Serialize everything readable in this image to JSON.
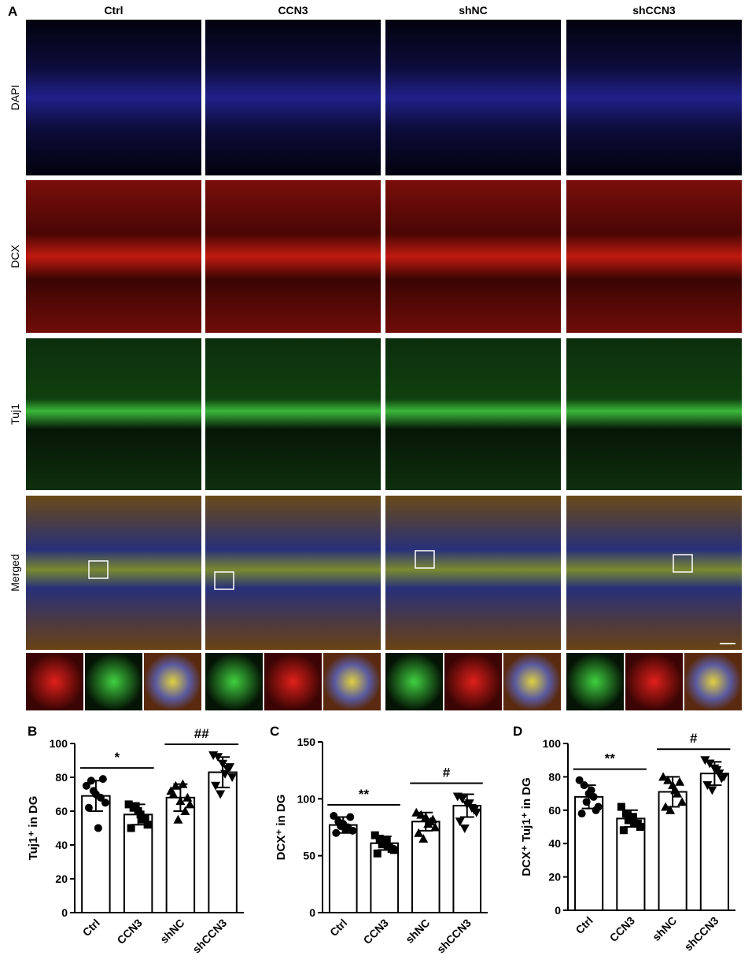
{
  "panel_a": {
    "label": "A",
    "columns": [
      "Ctrl",
      "CCN3",
      "shNC",
      "shCCN3"
    ],
    "rows": [
      "DAPI",
      "DCX",
      "Tuj1",
      "Merged"
    ]
  },
  "chart_data": [
    {
      "type": "bar",
      "panel_label": "B",
      "y_label": "Tuj1⁺ in DG",
      "categories": [
        "Ctrl",
        "CCN3",
        "shNC",
        "shCCN3"
      ],
      "values": [
        69,
        58,
        68,
        83
      ],
      "errors": [
        9,
        6,
        8,
        9
      ],
      "points": [
        [
          75,
          78,
          70,
          68,
          65,
          62,
          72,
          50,
          79
        ],
        [
          64,
          62,
          60,
          55,
          52,
          50,
          63,
          58,
          56
        ],
        [
          72,
          75,
          66,
          60,
          64,
          70,
          55,
          76,
          68
        ],
        [
          93,
          92,
          88,
          85,
          80,
          75,
          70,
          82,
          86
        ]
      ],
      "ylim": [
        0,
        100
      ],
      "yticks": [
        0,
        20,
        40,
        60,
        80,
        100
      ],
      "annotations": [
        {
          "text": "*",
          "from": "Ctrl",
          "to": "CCN3"
        },
        {
          "text": "##",
          "from": "shNC",
          "to": "shCCN3"
        }
      ]
    },
    {
      "type": "bar",
      "panel_label": "C",
      "y_label": "DCX⁺ in DG",
      "categories": [
        "Ctrl",
        "CCN3",
        "shNC",
        "shCCN3"
      ],
      "values": [
        77,
        61,
        80,
        94
      ],
      "errors": [
        7,
        6,
        8,
        10
      ],
      "points": [
        [
          85,
          80,
          78,
          75,
          72,
          70,
          76,
          73,
          84
        ],
        [
          68,
          65,
          62,
          58,
          55,
          52,
          60,
          63,
          56
        ],
        [
          88,
          86,
          84,
          80,
          75,
          70,
          65,
          78,
          82
        ],
        [
          102,
          100,
          95,
          92,
          88,
          80,
          74,
          96,
          90
        ]
      ],
      "ylim": [
        0,
        150
      ],
      "yticks": [
        0,
        50,
        100,
        150
      ],
      "annotations": [
        {
          "text": "**",
          "from": "Ctrl",
          "to": "CCN3"
        },
        {
          "text": "#",
          "from": "shNC",
          "to": "shCCN3"
        }
      ]
    },
    {
      "type": "bar",
      "panel_label": "D",
      "y_label": "DCX⁺ Tuj1⁺ in DG",
      "categories": [
        "Ctrl",
        "CCN3",
        "shNC",
        "shCCN3"
      ],
      "values": [
        68,
        55,
        71,
        82
      ],
      "errors": [
        7,
        5,
        9,
        7
      ],
      "points": [
        [
          78,
          75,
          70,
          68,
          62,
          58,
          65,
          72,
          60
        ],
        [
          62,
          58,
          55,
          52,
          50,
          48,
          54,
          56,
          52
        ],
        [
          80,
          78,
          75,
          70,
          65,
          62,
          60,
          72,
          77
        ],
        [
          90,
          88,
          85,
          82,
          80,
          75,
          72,
          84,
          79
        ]
      ],
      "ylim": [
        0,
        100
      ],
      "yticks": [
        0,
        20,
        40,
        60,
        80,
        100
      ],
      "annotations": [
        {
          "text": "**",
          "from": "Ctrl",
          "to": "CCN3"
        },
        {
          "text": "#",
          "from": "shNC",
          "to": "shCCN3"
        }
      ]
    }
  ]
}
